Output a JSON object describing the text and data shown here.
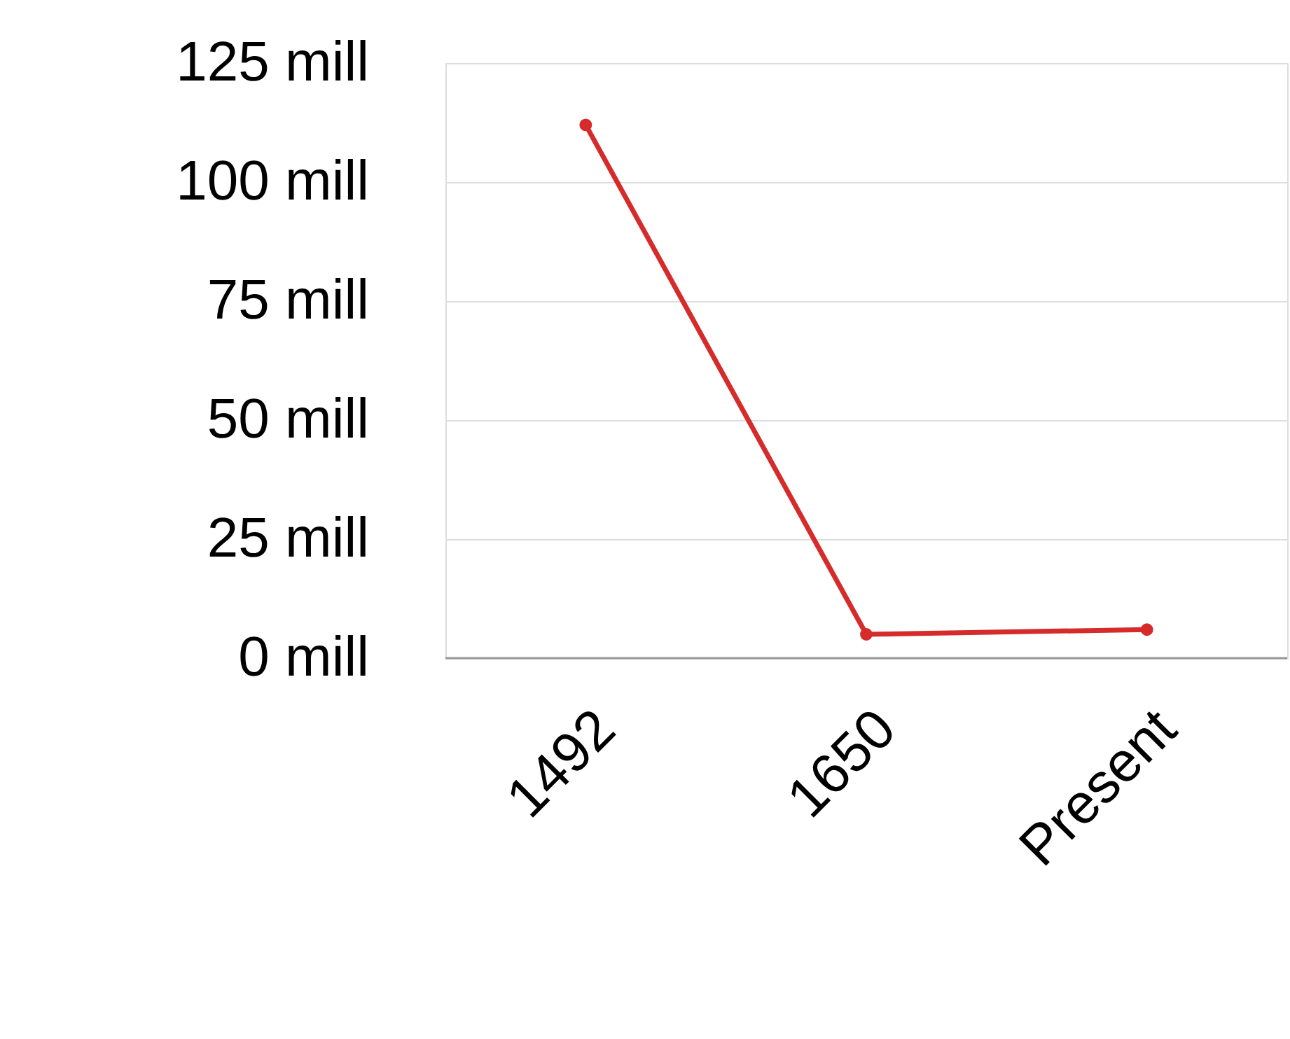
{
  "chart_data": {
    "type": "line",
    "categories": [
      "1492",
      "1650",
      "Present"
    ],
    "series": [
      {
        "color": "#d62b2b",
        "values": [
          112,
          5,
          6
        ]
      }
    ],
    "ylim": [
      0,
      125
    ],
    "yticks": [
      {
        "value": 0,
        "label": "0 mill"
      },
      {
        "value": 25,
        "label": "25 mill"
      },
      {
        "value": 50,
        "label": "50 mill"
      },
      {
        "value": 75,
        "label": "75 mill"
      },
      {
        "value": 100,
        "label": "100 mill"
      },
      {
        "value": 125,
        "label": "125 mill"
      }
    ],
    "grid": "y",
    "marker": "circle"
  }
}
